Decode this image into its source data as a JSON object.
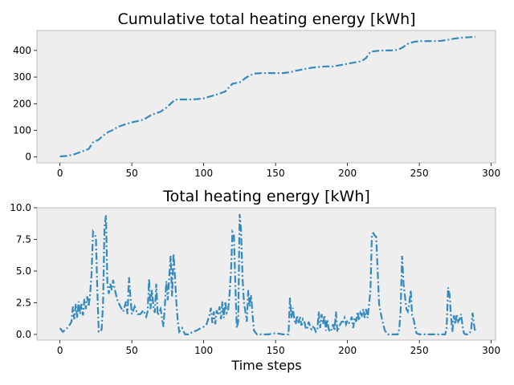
{
  "style": {
    "axes_facecolor": "#eeeeee",
    "axes_edgecolor": "#bcbcbc",
    "line_color": "#348abd",
    "line_style": "dashdot"
  },
  "chart_data": [
    {
      "type": "line",
      "title": "Cumulative total heating energy [kWh]",
      "xlabel": "",
      "ylabel": "",
      "xlim": [
        -16,
        303
      ],
      "ylim": [
        -22,
        475
      ],
      "xticks": [
        0,
        50,
        100,
        150,
        200,
        250,
        300
      ],
      "yticks": [
        0,
        100,
        200,
        300,
        400
      ],
      "xtick_labels": [
        "0",
        "50",
        "100",
        "150",
        "200",
        "250",
        "300"
      ],
      "ytick_labels": [
        "0",
        "100",
        "200",
        "300",
        "400"
      ],
      "grid": false,
      "series": [
        {
          "x": [
            0,
            5,
            10,
            15,
            20,
            23,
            27,
            30,
            33,
            37,
            40,
            45,
            50,
            55,
            58,
            60,
            63,
            66,
            70,
            74,
            78,
            80,
            85,
            90,
            95,
            100,
            105,
            110,
            115,
            120,
            125,
            130,
            135,
            140,
            145,
            150,
            155,
            160,
            165,
            170,
            175,
            180,
            185,
            190,
            195,
            200,
            205,
            210,
            213,
            216,
            220,
            225,
            230,
            235,
            238,
            242,
            246,
            250,
            255,
            260,
            265,
            270,
            275,
            280,
            285,
            289
          ],
          "y": [
            2,
            4,
            10,
            20,
            30,
            55,
            65,
            80,
            92,
            102,
            112,
            122,
            130,
            136,
            140,
            146,
            156,
            163,
            170,
            185,
            205,
            215,
            216,
            216,
            217,
            220,
            228,
            236,
            246,
            275,
            280,
            300,
            313,
            315,
            315,
            315,
            315,
            318,
            325,
            330,
            335,
            338,
            340,
            340,
            345,
            350,
            355,
            360,
            372,
            395,
            398,
            400,
            400,
            402,
            410,
            425,
            432,
            435,
            435,
            435,
            436,
            440,
            445,
            448,
            450,
            451
          ]
        }
      ]
    },
    {
      "type": "line",
      "title": "Total heating energy [kWh]",
      "xlabel": "Time steps",
      "ylabel": "",
      "xlim": [
        -16,
        303
      ],
      "ylim": [
        -0.45,
        10.0
      ],
      "xticks": [
        0,
        50,
        100,
        150,
        200,
        250,
        300
      ],
      "yticks": [
        0.0,
        2.5,
        5.0,
        7.5,
        10.0
      ],
      "xtick_labels": [
        "0",
        "50",
        "100",
        "150",
        "200",
        "250",
        "300"
      ],
      "ytick_labels": [
        "0.0",
        "2.5",
        "5.0",
        "7.5",
        "10.0"
      ],
      "grid": false,
      "series": [
        {
          "x": [
            0,
            2,
            4,
            6,
            8,
            9,
            10,
            11,
            12,
            13,
            14,
            15,
            16,
            17,
            18,
            19,
            20,
            21,
            22,
            23,
            24,
            25,
            26,
            27,
            28,
            29,
            30,
            31,
            32,
            33,
            34,
            35,
            36,
            37,
            38,
            40,
            42,
            44,
            46,
            47,
            48,
            49,
            50,
            52,
            54,
            56,
            58,
            60,
            61,
            62,
            63,
            64,
            65,
            66,
            67,
            68,
            70,
            72,
            73,
            74,
            75,
            76,
            77,
            78,
            79,
            80,
            81,
            82,
            83,
            85,
            87,
            89,
            90,
            92,
            95,
            98,
            100,
            102,
            104,
            105,
            106,
            107,
            108,
            109,
            110,
            111,
            112,
            113,
            114,
            115,
            116,
            117,
            118,
            119,
            120,
            121,
            122,
            123,
            124,
            125,
            126,
            127,
            128,
            129,
            130,
            131,
            132,
            133,
            134,
            135,
            137,
            140,
            145,
            150,
            155,
            158,
            159,
            160,
            161,
            162,
            163,
            164,
            165,
            166,
            167,
            168,
            169,
            170,
            171,
            172,
            173,
            174,
            175,
            176,
            177,
            178,
            179,
            180,
            181,
            182,
            183,
            184,
            185,
            186,
            187,
            188,
            189,
            190,
            191,
            192,
            193,
            194,
            195,
            196,
            197,
            198,
            199,
            200,
            201,
            202,
            203,
            204,
            205,
            206,
            207,
            208,
            209,
            210,
            211,
            212,
            213,
            214,
            215,
            216,
            217,
            218,
            219,
            220,
            222,
            224,
            226,
            228,
            230,
            232,
            233,
            234,
            235,
            236,
            237,
            238,
            239,
            240,
            241,
            242,
            243,
            244,
            245,
            246,
            247,
            248,
            250,
            252,
            255,
            258,
            262,
            266,
            268,
            269,
            270,
            271,
            272,
            273,
            274,
            275,
            276,
            277,
            278,
            279,
            280,
            281,
            282,
            283,
            284,
            285,
            286,
            287,
            288,
            289
          ],
          "y": [
            0.5,
            0.2,
            0.4,
            0.6,
            1.0,
            2.2,
            1.2,
            2.4,
            1.3,
            2.6,
            1.6,
            2.4,
            1.5,
            2.8,
            2.0,
            3.0,
            2.2,
            3.2,
            4.8,
            8.1,
            7.9,
            7.7,
            3.5,
            0.2,
            0.2,
            0.4,
            2.5,
            8.5,
            9.4,
            4.0,
            3.2,
            4.0,
            3.5,
            4.3,
            3.6,
            2.7,
            2.2,
            1.8,
            2.6,
            1.6,
            4.5,
            3.0,
            1.6,
            2.2,
            1.6,
            1.6,
            1.9,
            1.4,
            1.8,
            4.4,
            2.0,
            3.5,
            2.2,
            1.7,
            4.0,
            1.5,
            2.0,
            0.6,
            2.3,
            4.2,
            2.7,
            4.5,
            6.2,
            3.0,
            6.4,
            4.6,
            2.5,
            1.0,
            0.2,
            0.5,
            0.0,
            0.0,
            0.0,
            0.2,
            0.3,
            0.5,
            0.6,
            0.8,
            1.5,
            2.1,
            0.9,
            1.8,
            0.8,
            1.9,
            1.5,
            2.2,
            1.2,
            2.6,
            1.3,
            2.6,
            1.7,
            1.9,
            3.2,
            5.0,
            8.1,
            7.9,
            4.0,
            0.5,
            1.0,
            9.5,
            8.2,
            4.5,
            2.5,
            1.8,
            1.0,
            3.5,
            2.2,
            3.1,
            1.5,
            0.3,
            0.0,
            0.0,
            0.0,
            0.1,
            0.0,
            0.0,
            0.0,
            2.9,
            1.3,
            2.1,
            1.2,
            0.8,
            1.5,
            0.9,
            1.4,
            0.7,
            1.2,
            1.0,
            0.5,
            0.4,
            1.0,
            0.6,
            0.4,
            0.6,
            0.5,
            0.2,
            0.3,
            1.8,
            0.5,
            1.6,
            0.8,
            1.5,
            0.3,
            1.2,
            0.4,
            0.2,
            0.4,
            0.8,
            0.3,
            1.8,
            0.2,
            0.6,
            0.8,
            1.0,
            1.0,
            1.3,
            0.8,
            1.1,
            0.9,
            1.0,
            1.4,
            0.5,
            1.3,
            1.0,
            1.8,
            1.1,
            1.7,
            1.5,
            2.0,
            1.3,
            2.0,
            1.3,
            2.3,
            3.5,
            7.9,
            8.0,
            7.8,
            7.7,
            2.4,
            1.2,
            0.3,
            0.0,
            0.0,
            0.0,
            0.0,
            0.0,
            0.0,
            0.4,
            1.9,
            6.2,
            4.0,
            3.0,
            2.0,
            1.8,
            2.4,
            3.5,
            1.5,
            1.2,
            0.6,
            0.1,
            0.0,
            0.0,
            0.0,
            0.0,
            0.0,
            0.0,
            0.0,
            0.5,
            3.7,
            3.2,
            1.5,
            0.2,
            1.5,
            0.8,
            1.6,
            1.0,
            1.2,
            1.6,
            0.7,
            0.1,
            0.0,
            0.0,
            0.0,
            0.1,
            0.3,
            1.7,
            0.8,
            0.1
          ]
        }
      ]
    }
  ]
}
